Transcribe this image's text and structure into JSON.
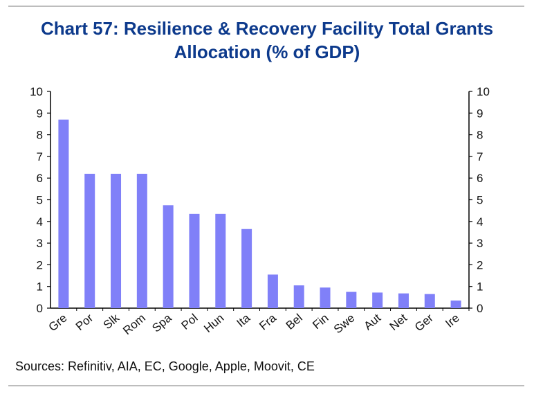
{
  "title": {
    "line1": "Chart 57: Resilience & Recovery Facility Total Grants",
    "line2": "Allocation (% of GDP)"
  },
  "source": "Sources: Refinitiv, AIA, EC, Google, Apple, Moovit, CE",
  "colors": {
    "bar": "#8080f8",
    "title": "#0d3a8c",
    "axis": "#000000",
    "rule": "#bdbdbd"
  },
  "chart_data": {
    "type": "bar",
    "categories": [
      "Gre",
      "Por",
      "Slk",
      "Rom",
      "Spa",
      "Pol",
      "Hun",
      "Ita",
      "Fra",
      "Bel",
      "Fin",
      "Swe",
      "Aut",
      "Net",
      "Ger",
      "Ire"
    ],
    "values": [
      8.7,
      6.2,
      6.2,
      6.2,
      4.75,
      4.35,
      4.35,
      3.65,
      1.55,
      1.05,
      0.95,
      0.75,
      0.72,
      0.68,
      0.65,
      0.35
    ],
    "ylim": [
      0,
      10
    ],
    "yticks": [
      0,
      1,
      2,
      3,
      4,
      5,
      6,
      7,
      8,
      9,
      10
    ],
    "left_axis": true,
    "right_axis": true,
    "grid": false,
    "legend": "none"
  }
}
